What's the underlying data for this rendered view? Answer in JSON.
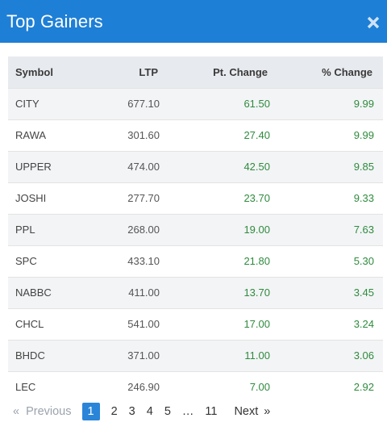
{
  "header": {
    "title": "Top Gainers",
    "close_icon": "close-icon"
  },
  "table": {
    "columns": [
      "Symbol",
      "LTP",
      "Pt. Change",
      "% Change"
    ],
    "rows": [
      {
        "symbol": "CITY",
        "ltp": "677.10",
        "pt_change": "61.50",
        "pct_change": "9.99"
      },
      {
        "symbol": "RAWA",
        "ltp": "301.60",
        "pt_change": "27.40",
        "pct_change": "9.99"
      },
      {
        "symbol": "UPPER",
        "ltp": "474.00",
        "pt_change": "42.50",
        "pct_change": "9.85"
      },
      {
        "symbol": "JOSHI",
        "ltp": "277.70",
        "pt_change": "23.70",
        "pct_change": "9.33"
      },
      {
        "symbol": "PPL",
        "ltp": "268.00",
        "pt_change": "19.00",
        "pct_change": "7.63"
      },
      {
        "symbol": "SPC",
        "ltp": "433.10",
        "pt_change": "21.80",
        "pct_change": "5.30"
      },
      {
        "symbol": "NABBC",
        "ltp": "411.00",
        "pt_change": "13.70",
        "pct_change": "3.45"
      },
      {
        "symbol": "CHCL",
        "ltp": "541.00",
        "pt_change": "17.00",
        "pct_change": "3.24"
      },
      {
        "symbol": "BHDC",
        "ltp": "371.00",
        "pt_change": "11.00",
        "pct_change": "3.06"
      },
      {
        "symbol": "LEC",
        "ltp": "246.90",
        "pt_change": "7.00",
        "pct_change": "2.92"
      }
    ]
  },
  "pagination": {
    "first": "«",
    "previous": "Previous",
    "pages": [
      "1",
      "2",
      "3",
      "4",
      "5"
    ],
    "ellipsis": "…",
    "last_page": "11",
    "next": "Next",
    "last": "»",
    "active_page": "1"
  },
  "colors": {
    "header_bg": "#1e7fd6",
    "positive": "#2e8b3d",
    "active_page_bg": "#2a85d8"
  }
}
